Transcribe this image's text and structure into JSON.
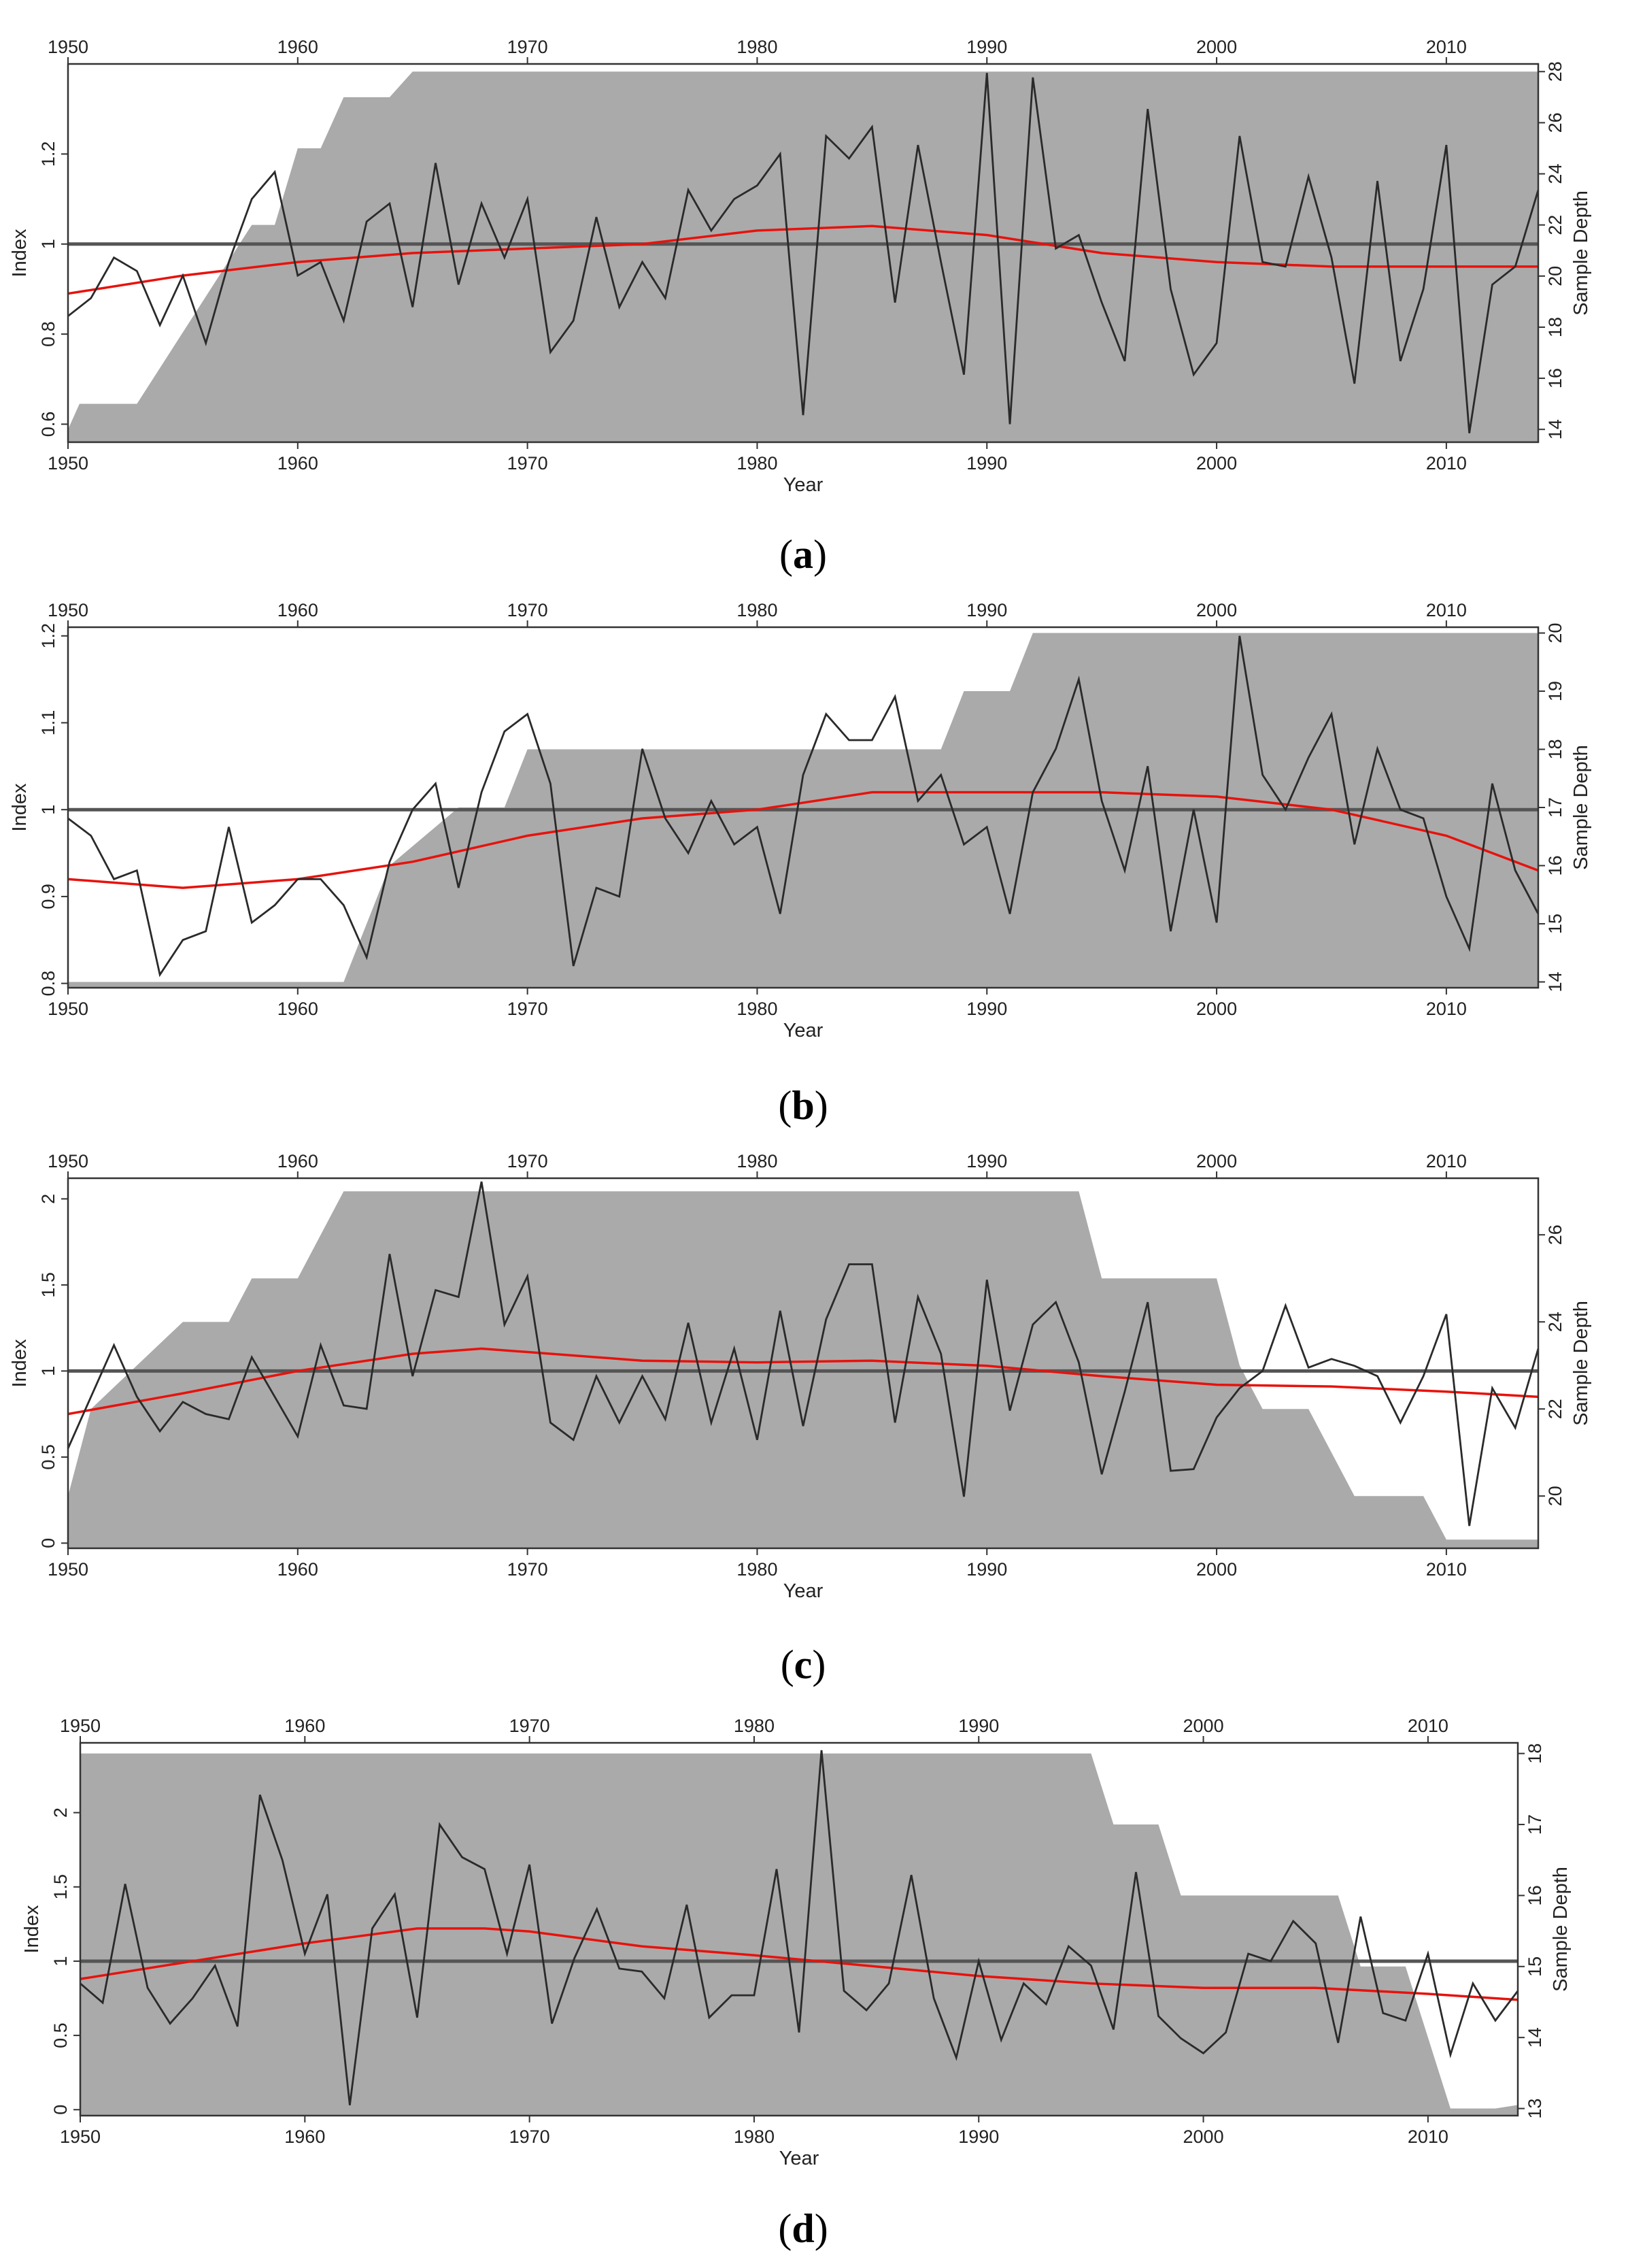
{
  "colors": {
    "sample_depth_fill": "#aaaaaa",
    "index_line": "#2a2a2a",
    "spline": "#e8120c",
    "reference_line": "#555555",
    "frame": "#333333"
  },
  "chart_data": [
    {
      "panel": "a",
      "caption": "(a)",
      "type": "line",
      "xlabel": "Year",
      "ylabel": "Index",
      "y2label": "Sample Depth",
      "xlim": [
        1950,
        2014
      ],
      "ylim": [
        0.56,
        1.4
      ],
      "y2lim": [
        13.5,
        28.3
      ],
      "xticks": [
        1950,
        1960,
        1970,
        1980,
        1990,
        2000,
        2010
      ],
      "yticks": [
        0.6,
        0.8,
        1.0,
        1.2
      ],
      "y2ticks": [
        14,
        16,
        18,
        20,
        22,
        24,
        26,
        28
      ],
      "reference_line": 1.0,
      "series": [
        {
          "name": "Index",
          "x": [
            1950,
            1951,
            1952,
            1953,
            1954,
            1955,
            1956,
            1957,
            1958,
            1959,
            1960,
            1961,
            1962,
            1963,
            1964,
            1965,
            1966,
            1967,
            1968,
            1969,
            1970,
            1971,
            1972,
            1973,
            1974,
            1975,
            1976,
            1977,
            1978,
            1979,
            1980,
            1981,
            1982,
            1983,
            1984,
            1985,
            1986,
            1987,
            1988,
            1989,
            1990,
            1991,
            1992,
            1993,
            1994,
            1995,
            1996,
            1997,
            1998,
            1999,
            2000,
            2001,
            2002,
            2003,
            2004,
            2005,
            2006,
            2007,
            2008,
            2009,
            2010,
            2011,
            2012,
            2013,
            2014
          ],
          "y": [
            0.84,
            0.88,
            0.97,
            0.94,
            0.82,
            0.93,
            0.78,
            0.96,
            1.1,
            1.16,
            0.93,
            0.96,
            0.83,
            1.05,
            1.09,
            0.86,
            1.18,
            0.91,
            1.09,
            0.97,
            1.1,
            0.76,
            0.83,
            1.06,
            0.86,
            0.96,
            0.88,
            1.12,
            1.03,
            1.1,
            1.13,
            1.2,
            0.62,
            1.24,
            1.19,
            1.26,
            0.87,
            1.22,
            0.96,
            0.71,
            1.38,
            0.6,
            1.37,
            0.99,
            1.02,
            0.87,
            0.74,
            1.3,
            0.9,
            0.71,
            0.78,
            1.24,
            0.96,
            0.95,
            1.15,
            0.97,
            0.69,
            1.14,
            0.74,
            0.9,
            1.22,
            0.58,
            0.91,
            0.95,
            1.12
          ]
        },
        {
          "name": "Spline",
          "x": [
            1950,
            1955,
            1960,
            1965,
            1970,
            1975,
            1980,
            1985,
            1990,
            1995,
            2000,
            2005,
            2010,
            2014
          ],
          "y": [
            0.89,
            0.93,
            0.96,
            0.98,
            0.99,
            1.0,
            1.03,
            1.04,
            1.02,
            0.98,
            0.96,
            0.95,
            0.95,
            0.95
          ]
        },
        {
          "name": "Sample Depth",
          "x": [
            1950,
            1950.5,
            1953,
            1958,
            1959,
            1960,
            1961,
            1962,
            1963,
            1964,
            1965,
            2014
          ],
          "y": [
            14,
            15,
            15,
            22,
            22,
            25,
            25,
            27,
            27,
            27,
            28,
            28
          ]
        }
      ]
    },
    {
      "panel": "b",
      "caption": "(b)",
      "type": "line",
      "xlabel": "Year",
      "ylabel": "Index",
      "y2label": "Sample Depth",
      "xlim": [
        1950,
        2014
      ],
      "ylim": [
        0.795,
        1.21
      ],
      "y2lim": [
        13.9,
        20.1
      ],
      "xticks": [
        1950,
        1960,
        1970,
        1980,
        1990,
        2000,
        2010
      ],
      "yticks": [
        0.8,
        0.9,
        1.0,
        1.1,
        1.2
      ],
      "y2ticks": [
        14,
        15,
        16,
        17,
        18,
        19,
        20
      ],
      "reference_line": 1.0,
      "series": [
        {
          "name": "Index",
          "x": [
            1950,
            1951,
            1952,
            1953,
            1954,
            1955,
            1956,
            1957,
            1958,
            1959,
            1960,
            1961,
            1962,
            1963,
            1964,
            1965,
            1966,
            1967,
            1968,
            1969,
            1970,
            1971,
            1972,
            1973,
            1974,
            1975,
            1976,
            1977,
            1978,
            1979,
            1980,
            1981,
            1982,
            1983,
            1984,
            1985,
            1986,
            1987,
            1988,
            1989,
            1990,
            1991,
            1992,
            1993,
            1994,
            1995,
            1996,
            1997,
            1998,
            1999,
            2000,
            2001,
            2002,
            2003,
            2004,
            2005,
            2006,
            2007,
            2008,
            2009,
            2010,
            2011,
            2012,
            2013,
            2014
          ],
          "y": [
            0.99,
            0.97,
            0.92,
            0.93,
            0.81,
            0.85,
            0.86,
            0.98,
            0.87,
            0.89,
            0.92,
            0.92,
            0.89,
            0.83,
            0.94,
            1.0,
            1.03,
            0.91,
            1.02,
            1.09,
            1.11,
            1.03,
            0.82,
            0.91,
            0.9,
            1.07,
            0.99,
            0.95,
            1.01,
            0.96,
            0.98,
            0.88,
            1.04,
            1.11,
            1.08,
            1.08,
            1.13,
            1.01,
            1.04,
            0.96,
            0.98,
            0.88,
            1.02,
            1.07,
            1.15,
            1.01,
            0.93,
            1.05,
            0.86,
            1.0,
            0.87,
            1.2,
            1.04,
            1.0,
            1.06,
            1.11,
            0.96,
            1.07,
            1.0,
            0.99,
            0.9,
            0.84,
            1.03,
            0.93,
            0.88
          ]
        },
        {
          "name": "Spline",
          "x": [
            1950,
            1955,
            1960,
            1965,
            1970,
            1975,
            1980,
            1985,
            1990,
            1995,
            2000,
            2005,
            2010,
            2014
          ],
          "y": [
            0.92,
            0.91,
            0.92,
            0.94,
            0.97,
            0.99,
            1.0,
            1.02,
            1.02,
            1.02,
            1.015,
            1.0,
            0.97,
            0.93
          ]
        },
        {
          "name": "Sample Depth",
          "x": [
            1950,
            1962,
            1963,
            1964,
            1967,
            1969,
            1970,
            1988,
            1989,
            1991,
            1992,
            2014
          ],
          "y": [
            14,
            14,
            15,
            16,
            17,
            17,
            18,
            18,
            19,
            19,
            20,
            20
          ]
        }
      ]
    },
    {
      "panel": "c",
      "caption": "(c)",
      "type": "line",
      "xlabel": "Year",
      "ylabel": "Index",
      "y2label": "Sample Depth",
      "xlim": [
        1950,
        2014
      ],
      "ylim": [
        -0.03,
        2.12
      ],
      "y2lim": [
        18.8,
        27.3
      ],
      "xticks": [
        1950,
        1960,
        1970,
        1980,
        1990,
        2000,
        2010
      ],
      "yticks": [
        0.0,
        0.5,
        1.0,
        1.5,
        2.0
      ],
      "y2ticks": [
        20,
        22,
        24,
        26
      ],
      "reference_line": 1.0,
      "series": [
        {
          "name": "Index",
          "x": [
            1950,
            1951,
            1952,
            1953,
            1954,
            1955,
            1956,
            1957,
            1958,
            1959,
            1960,
            1961,
            1962,
            1963,
            1964,
            1965,
            1966,
            1967,
            1968,
            1969,
            1970,
            1971,
            1972,
            1973,
            1974,
            1975,
            1976,
            1977,
            1978,
            1979,
            1980,
            1981,
            1982,
            1983,
            1984,
            1985,
            1986,
            1987,
            1988,
            1989,
            1990,
            1991,
            1992,
            1993,
            1994,
            1995,
            1996,
            1997,
            1998,
            1999,
            2000,
            2001,
            2002,
            2003,
            2004,
            2005,
            2006,
            2007,
            2008,
            2009,
            2010,
            2011,
            2012,
            2013,
            2014
          ],
          "y": [
            0.55,
            0.85,
            1.15,
            0.85,
            0.65,
            0.82,
            0.75,
            0.72,
            1.08,
            0.85,
            0.62,
            1.15,
            0.8,
            0.78,
            1.68,
            0.97,
            1.47,
            1.43,
            2.1,
            1.27,
            1.55,
            0.7,
            0.6,
            0.97,
            0.7,
            0.97,
            0.72,
            1.28,
            0.7,
            1.13,
            0.6,
            1.35,
            0.68,
            1.3,
            1.62,
            1.62,
            0.7,
            1.43,
            1.1,
            0.27,
            1.53,
            0.77,
            1.27,
            1.4,
            1.05,
            0.4,
            0.88,
            1.4,
            0.42,
            0.43,
            0.73,
            0.9,
            1.0,
            1.38,
            1.02,
            1.07,
            1.03,
            0.97,
            0.7,
            0.97,
            1.33,
            0.1,
            0.9,
            0.67,
            1.13
          ]
        },
        {
          "name": "Spline",
          "x": [
            1950,
            1955,
            1960,
            1965,
            1968,
            1970,
            1975,
            1980,
            1985,
            1990,
            1995,
            2000,
            2005,
            2010,
            2014
          ],
          "y": [
            0.75,
            0.87,
            1.0,
            1.1,
            1.13,
            1.11,
            1.06,
            1.05,
            1.06,
            1.03,
            0.97,
            0.92,
            0.91,
            0.88,
            0.85
          ]
        },
        {
          "name": "Sample Depth",
          "x": [
            1950,
            1951,
            1953,
            1955,
            1957,
            1958,
            1960,
            1962,
            1994,
            1995,
            2000,
            2001,
            2002,
            2004,
            2005,
            2006,
            2009,
            2010,
            2014
          ],
          "y": [
            20,
            22,
            23,
            24,
            24,
            25,
            25,
            27,
            27,
            25,
            25,
            23,
            22,
            22,
            21,
            20,
            20,
            19,
            19
          ]
        }
      ]
    },
    {
      "panel": "d",
      "caption": "(d)",
      "type": "line",
      "xlabel": "Year",
      "ylabel": "Index",
      "y2label": "Sample Depth",
      "xlim": [
        1950,
        2014
      ],
      "ylim": [
        -0.04,
        2.47
      ],
      "y2lim": [
        12.9,
        18.15
      ],
      "xticks": [
        1950,
        1960,
        1970,
        1980,
        1990,
        2000,
        2010
      ],
      "yticks": [
        0.0,
        0.5,
        1.0,
        1.5,
        2.0
      ],
      "y2ticks": [
        13,
        14,
        15,
        16,
        17,
        18
      ],
      "reference_line": 1.0,
      "series": [
        {
          "name": "Index",
          "x": [
            1950,
            1951,
            1952,
            1953,
            1954,
            1955,
            1956,
            1957,
            1958,
            1959,
            1960,
            1961,
            1962,
            1963,
            1964,
            1965,
            1966,
            1967,
            1968,
            1969,
            1970,
            1971,
            1972,
            1973,
            1974,
            1975,
            1976,
            1977,
            1978,
            1979,
            1980,
            1981,
            1982,
            1983,
            1984,
            1985,
            1986,
            1987,
            1988,
            1989,
            1990,
            1991,
            1992,
            1993,
            1994,
            1995,
            1996,
            1997,
            1998,
            1999,
            2000,
            2001,
            2002,
            2003,
            2004,
            2005,
            2006,
            2007,
            2008,
            2009,
            2010,
            2011,
            2012,
            2013,
            2014
          ],
          "y": [
            0.85,
            0.72,
            1.52,
            0.82,
            0.58,
            0.75,
            0.97,
            0.56,
            2.12,
            1.68,
            1.05,
            1.45,
            0.03,
            1.22,
            1.45,
            0.62,
            1.92,
            1.7,
            1.62,
            1.05,
            1.65,
            0.58,
            1.02,
            1.35,
            0.95,
            0.93,
            0.75,
            1.38,
            0.62,
            0.77,
            0.77,
            1.62,
            0.52,
            2.42,
            0.8,
            0.67,
            0.85,
            1.58,
            0.75,
            0.35,
            1.0,
            0.47,
            0.85,
            0.71,
            1.1,
            0.97,
            0.54,
            1.6,
            0.63,
            0.48,
            0.38,
            0.52,
            1.05,
            1.0,
            1.27,
            1.12,
            0.45,
            1.3,
            0.65,
            0.6,
            1.05,
            0.37,
            0.85,
            0.6,
            0.8
          ]
        },
        {
          "name": "Spline",
          "x": [
            1950,
            1955,
            1960,
            1965,
            1968,
            1970,
            1975,
            1980,
            1985,
            1990,
            1995,
            2000,
            2005,
            2010,
            2014
          ],
          "y": [
            0.88,
            1.0,
            1.12,
            1.22,
            1.22,
            1.2,
            1.1,
            1.04,
            0.97,
            0.9,
            0.85,
            0.82,
            0.82,
            0.78,
            0.74
          ]
        },
        {
          "name": "Sample Depth",
          "x": [
            1950,
            1995,
            1996,
            1998,
            1999,
            2006,
            2007,
            2009,
            2010,
            2011,
            2013,
            2014
          ],
          "y": [
            18,
            18,
            17,
            17,
            16,
            16,
            15,
            15,
            14,
            13,
            13,
            13.05
          ]
        }
      ]
    }
  ]
}
